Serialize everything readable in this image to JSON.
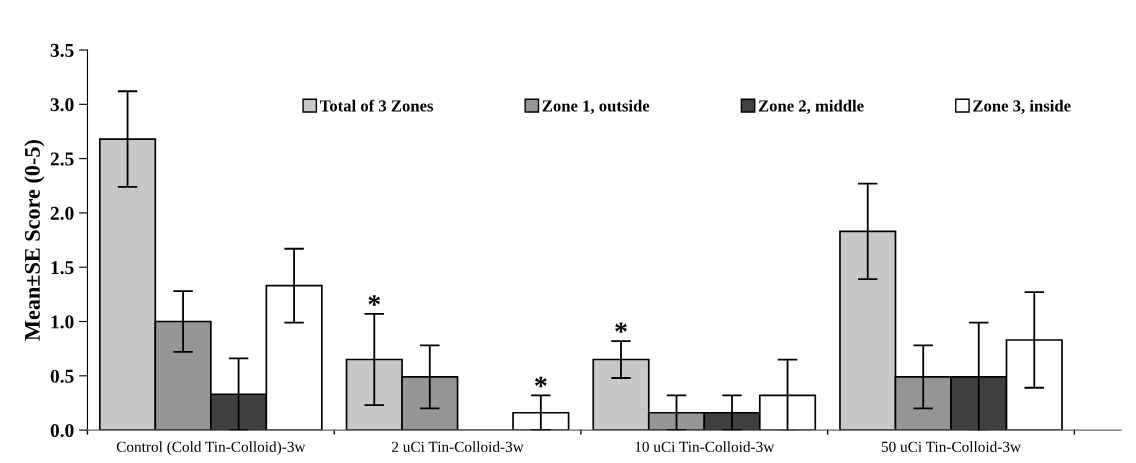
{
  "chart_data": {
    "type": "bar",
    "ylabel": "Mean±SE Score (0-5)",
    "categories": [
      "Control (Cold Tin-Colloid)-3w",
      "2 uCi Tin-Colloid-3w",
      "10 uCi Tin-Colloid-3w",
      "50 uCi Tin-Colloid-3w"
    ],
    "series": [
      {
        "name": "Total of 3 Zones",
        "color": "#c8c8c8",
        "values": [
          2.68,
          0.65,
          0.65,
          1.83
        ],
        "errors": [
          0.44,
          0.42,
          0.17,
          0.44
        ],
        "value_labels": [
          null,
          "*",
          "*",
          null
        ]
      },
      {
        "name": "Zone 1, outside",
        "color": "#969696",
        "values": [
          1.0,
          0.49,
          0.16,
          0.49
        ],
        "errors": [
          0.28,
          0.29,
          0.16,
          0.29
        ]
      },
      {
        "name": "Zone 2, middle",
        "color": "#404040",
        "values": [
          0.33,
          0.0,
          0.16,
          0.49
        ],
        "errors": [
          0.33,
          null,
          0.16,
          0.5
        ]
      },
      {
        "name": "Zone 3, inside",
        "color": "#ffffff",
        "values": [
          1.33,
          0.16,
          0.32,
          0.83
        ],
        "errors": [
          0.34,
          0.16,
          0.33,
          0.44
        ],
        "value_labels": [
          null,
          "*",
          null,
          null
        ]
      }
    ],
    "ylim": [
      0,
      3.5
    ],
    "yticks": [
      {
        "value": 0,
        "label": "0.0"
      },
      {
        "value": 0.5,
        "label": "0.5"
      },
      {
        "value": 1,
        "label": "1.0"
      },
      {
        "value": 1.5,
        "label": "1.5"
      },
      {
        "value": 2,
        "label": "2.0"
      },
      {
        "value": 2.5,
        "label": "2.5"
      },
      {
        "value": 3,
        "label": "3.0"
      },
      {
        "value": 3.5,
        "label": "3.5"
      }
    ],
    "legend": "top",
    "grid": false
  }
}
